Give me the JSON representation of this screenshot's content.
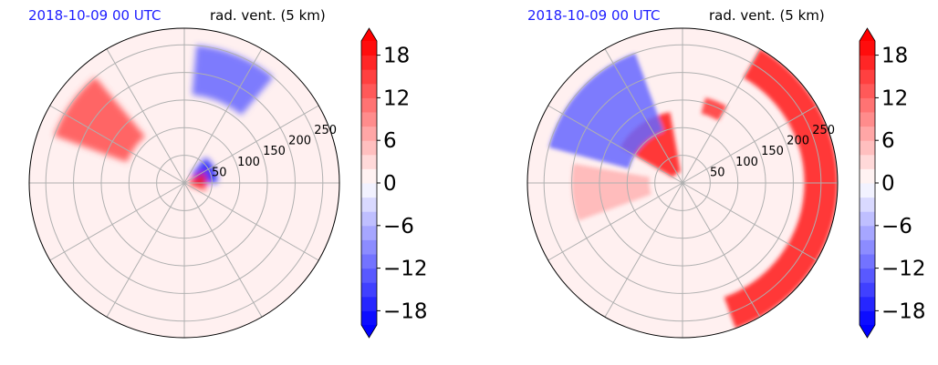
{
  "chart_data": [
    {
      "type": "heatmap",
      "projection": "polar",
      "title_left": "2018-10-09 00 UTC",
      "title_right": "rad. vent. (5 km)",
      "title_left_color": "#1f1fff",
      "range_rings": [
        50,
        100,
        150,
        200,
        250
      ],
      "range_labels": [
        "50",
        "100",
        "150",
        "200",
        "250"
      ],
      "angular_grid_deg": 30,
      "grid": true,
      "colorbar": {
        "ticks": [
          18,
          12,
          6,
          0,
          -6,
          -12,
          -18
        ],
        "tick_labels": [
          "18",
          "12",
          "6",
          "0",
          "−6",
          "−12",
          "−18"
        ],
        "vmin": -20,
        "vmax": 20,
        "levels": 20,
        "extend": "both",
        "colormap": "bwr",
        "low_color": "#0000ff",
        "high_color": "#ff0000"
      },
      "features": [
        {
          "kind": "band",
          "sign": "positive",
          "range_km": [
            110,
            250
          ],
          "azimuth_deg": [
            290,
            320
          ],
          "magnitude": 14
        },
        {
          "kind": "band",
          "sign": "negative",
          "range_km": [
            160,
            250
          ],
          "azimuth_deg": [
            5,
            40
          ],
          "magnitude": -12
        },
        {
          "kind": "blob",
          "sign": "negative",
          "range_km": [
            20,
            60
          ],
          "azimuth_deg": [
            40,
            90
          ],
          "magnitude": -18
        },
        {
          "kind": "blob",
          "sign": "positive",
          "range_km": [
            10,
            40
          ],
          "azimuth_deg": [
            60,
            110
          ],
          "magnitude": 18
        }
      ]
    },
    {
      "type": "heatmap",
      "projection": "polar",
      "title_left": "2018-10-09 00 UTC",
      "title_right": "rad. vent. (5 km)",
      "title_left_color": "#1f1fff",
      "range_rings": [
        50,
        100,
        150,
        200,
        250
      ],
      "range_labels": [
        "50",
        "100",
        "150",
        "200",
        "250"
      ],
      "angular_grid_deg": 30,
      "grid": true,
      "colorbar": {
        "ticks": [
          18,
          12,
          6,
          0,
          -6,
          -12,
          -18
        ],
        "tick_labels": [
          "18",
          "12",
          "6",
          "0",
          "−6",
          "−12",
          "−18"
        ],
        "vmin": -20,
        "vmax": 20,
        "levels": 20,
        "extend": "both",
        "colormap": "bwr",
        "low_color": "#0000ff",
        "high_color": "#ff0000"
      },
      "features": [
        {
          "kind": "arc",
          "sign": "positive",
          "range_km": [
            220,
            280
          ],
          "azimuth_deg": [
            30,
            160
          ],
          "magnitude": 18
        },
        {
          "kind": "band",
          "sign": "positive",
          "range_km": [
            20,
            130
          ],
          "azimuth_deg": [
            300,
            350
          ],
          "magnitude": 18
        },
        {
          "kind": "blob",
          "sign": "positive",
          "range_km": [
            130,
            160
          ],
          "azimuth_deg": [
            15,
            30
          ],
          "magnitude": 16
        },
        {
          "kind": "band",
          "sign": "negative",
          "range_km": [
            100,
            250
          ],
          "azimuth_deg": [
            285,
            340
          ],
          "magnitude": -12
        },
        {
          "kind": "band",
          "sign": "positive",
          "range_km": [
            60,
            200
          ],
          "azimuth_deg": [
            250,
            280
          ],
          "magnitude": 6
        }
      ]
    }
  ]
}
